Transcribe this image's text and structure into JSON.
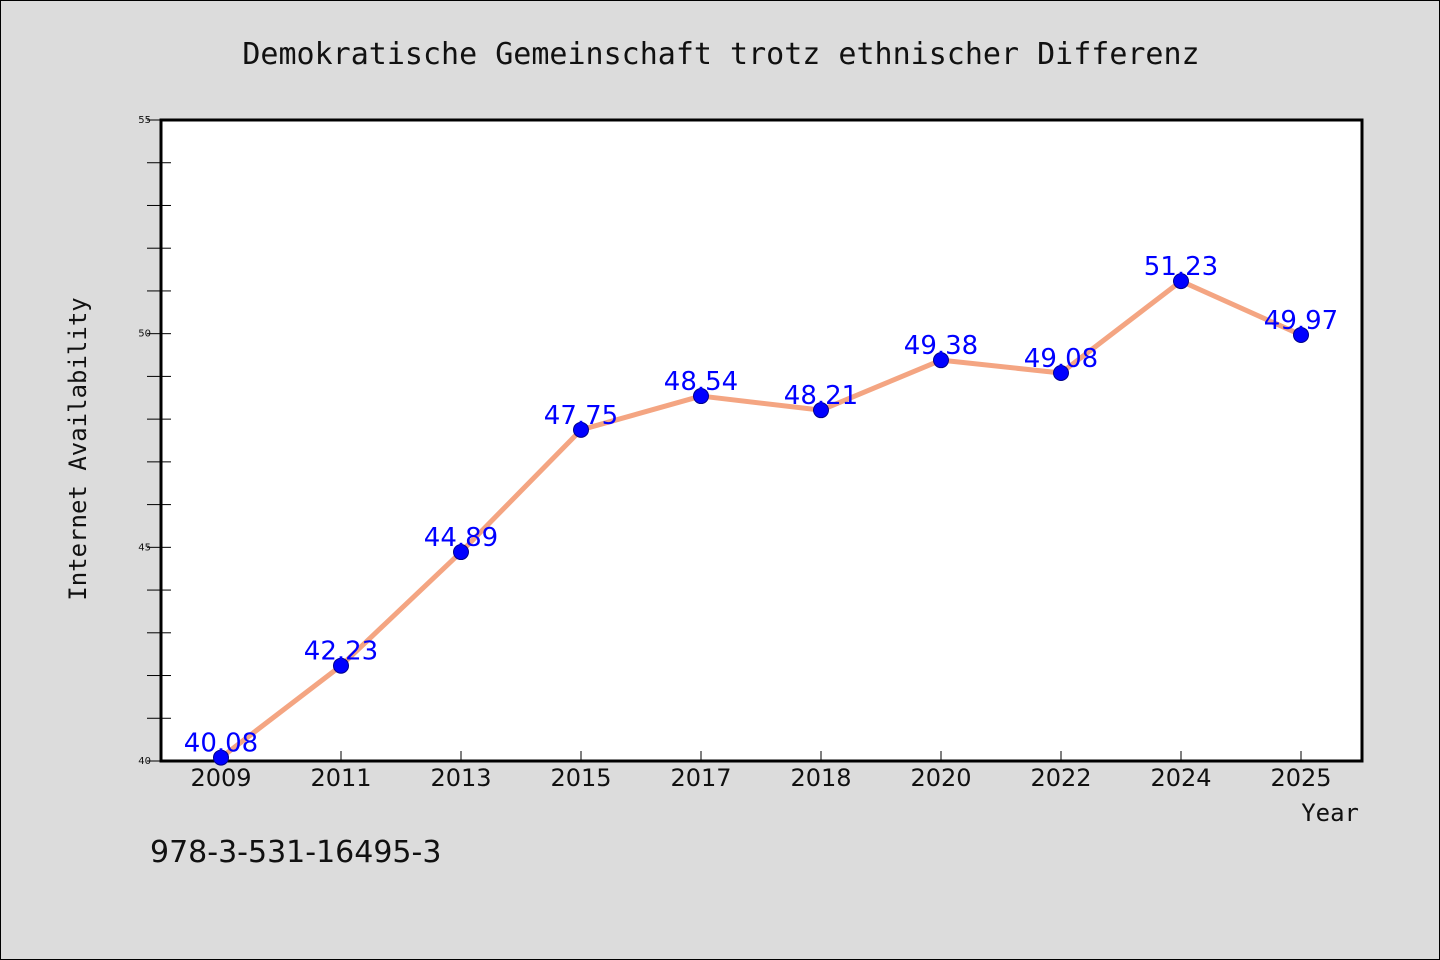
{
  "chart_data": {
    "type": "line",
    "title": "Demokratische Gemeinschaft trotz ethnischer Differenz",
    "xlabel": "Year",
    "ylabel": "Internet Availability",
    "categories": [
      "2009",
      "2011",
      "2013",
      "2015",
      "2017",
      "2018",
      "2020",
      "2022",
      "2024",
      "2025"
    ],
    "series": [
      {
        "values": [
          40.08,
          42.23,
          44.89,
          47.75,
          48.54,
          48.21,
          49.38,
          49.08,
          51.23,
          49.97
        ],
        "labels": [
          "40.08",
          "42.23",
          "44.89",
          "47.75",
          "48.54",
          "48.21",
          "49.38",
          "49.08",
          "51.23",
          "49.97"
        ],
        "line_color": "#f4a582",
        "marker_color": "#0000ff",
        "label_color": "#0000ff"
      }
    ],
    "ylim": [
      40,
      55
    ],
    "yticks": [
      "40",
      "45",
      "50",
      "55"
    ],
    "grid": false,
    "legend": "none"
  },
  "isbn": "978-3-531-16495-3",
  "colors": {
    "background": "#dcdcdc",
    "plot_background": "#ffffff"
  }
}
